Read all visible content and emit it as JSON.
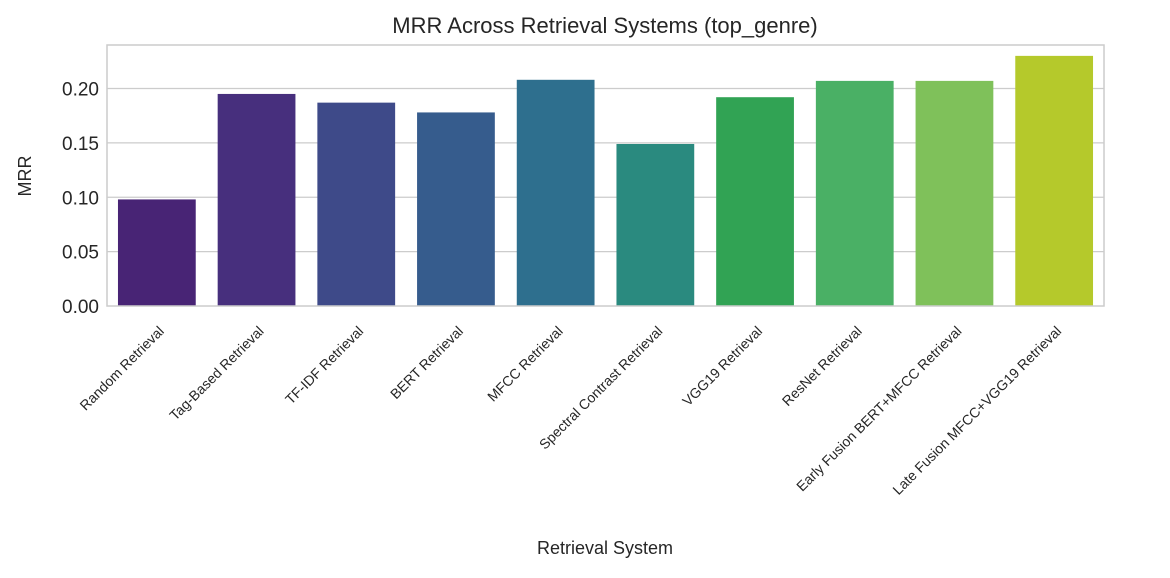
{
  "chart_data": {
    "type": "bar",
    "title": "MRR Across Retrieval Systems (top_genre)",
    "xlabel": "Retrieval System",
    "ylabel": "MRR",
    "categories": [
      "Random Retrieval",
      "Tag-Based Retrieval",
      "TF-IDF Retrieval",
      "BERT Retrieval",
      "MFCC Retrieval",
      "Spectral Contrast Retrieval",
      "VGG19 Retrieval",
      "ResNet Retrieval",
      "Early Fusion BERT+MFCC Retrieval",
      "Late Fusion MFCC+VGG19 Retrieval"
    ],
    "values": [
      0.098,
      0.195,
      0.187,
      0.178,
      0.208,
      0.149,
      0.192,
      0.207,
      0.207,
      0.23
    ],
    "colors": [
      "#482475",
      "#472f7d",
      "#3e4a89",
      "#365c8d",
      "#2e6f8e",
      "#2a8a7f",
      "#31a354",
      "#4ab065",
      "#7fc15a",
      "#b5c92b"
    ],
    "ylim": [
      0,
      0.24
    ],
    "yticks": [
      0.0,
      0.05,
      0.1,
      0.15,
      0.2
    ],
    "ytick_labels": [
      "0.00",
      "0.05",
      "0.10",
      "0.15",
      "0.20"
    ],
    "grid": "horizontal",
    "legend": "none"
  }
}
